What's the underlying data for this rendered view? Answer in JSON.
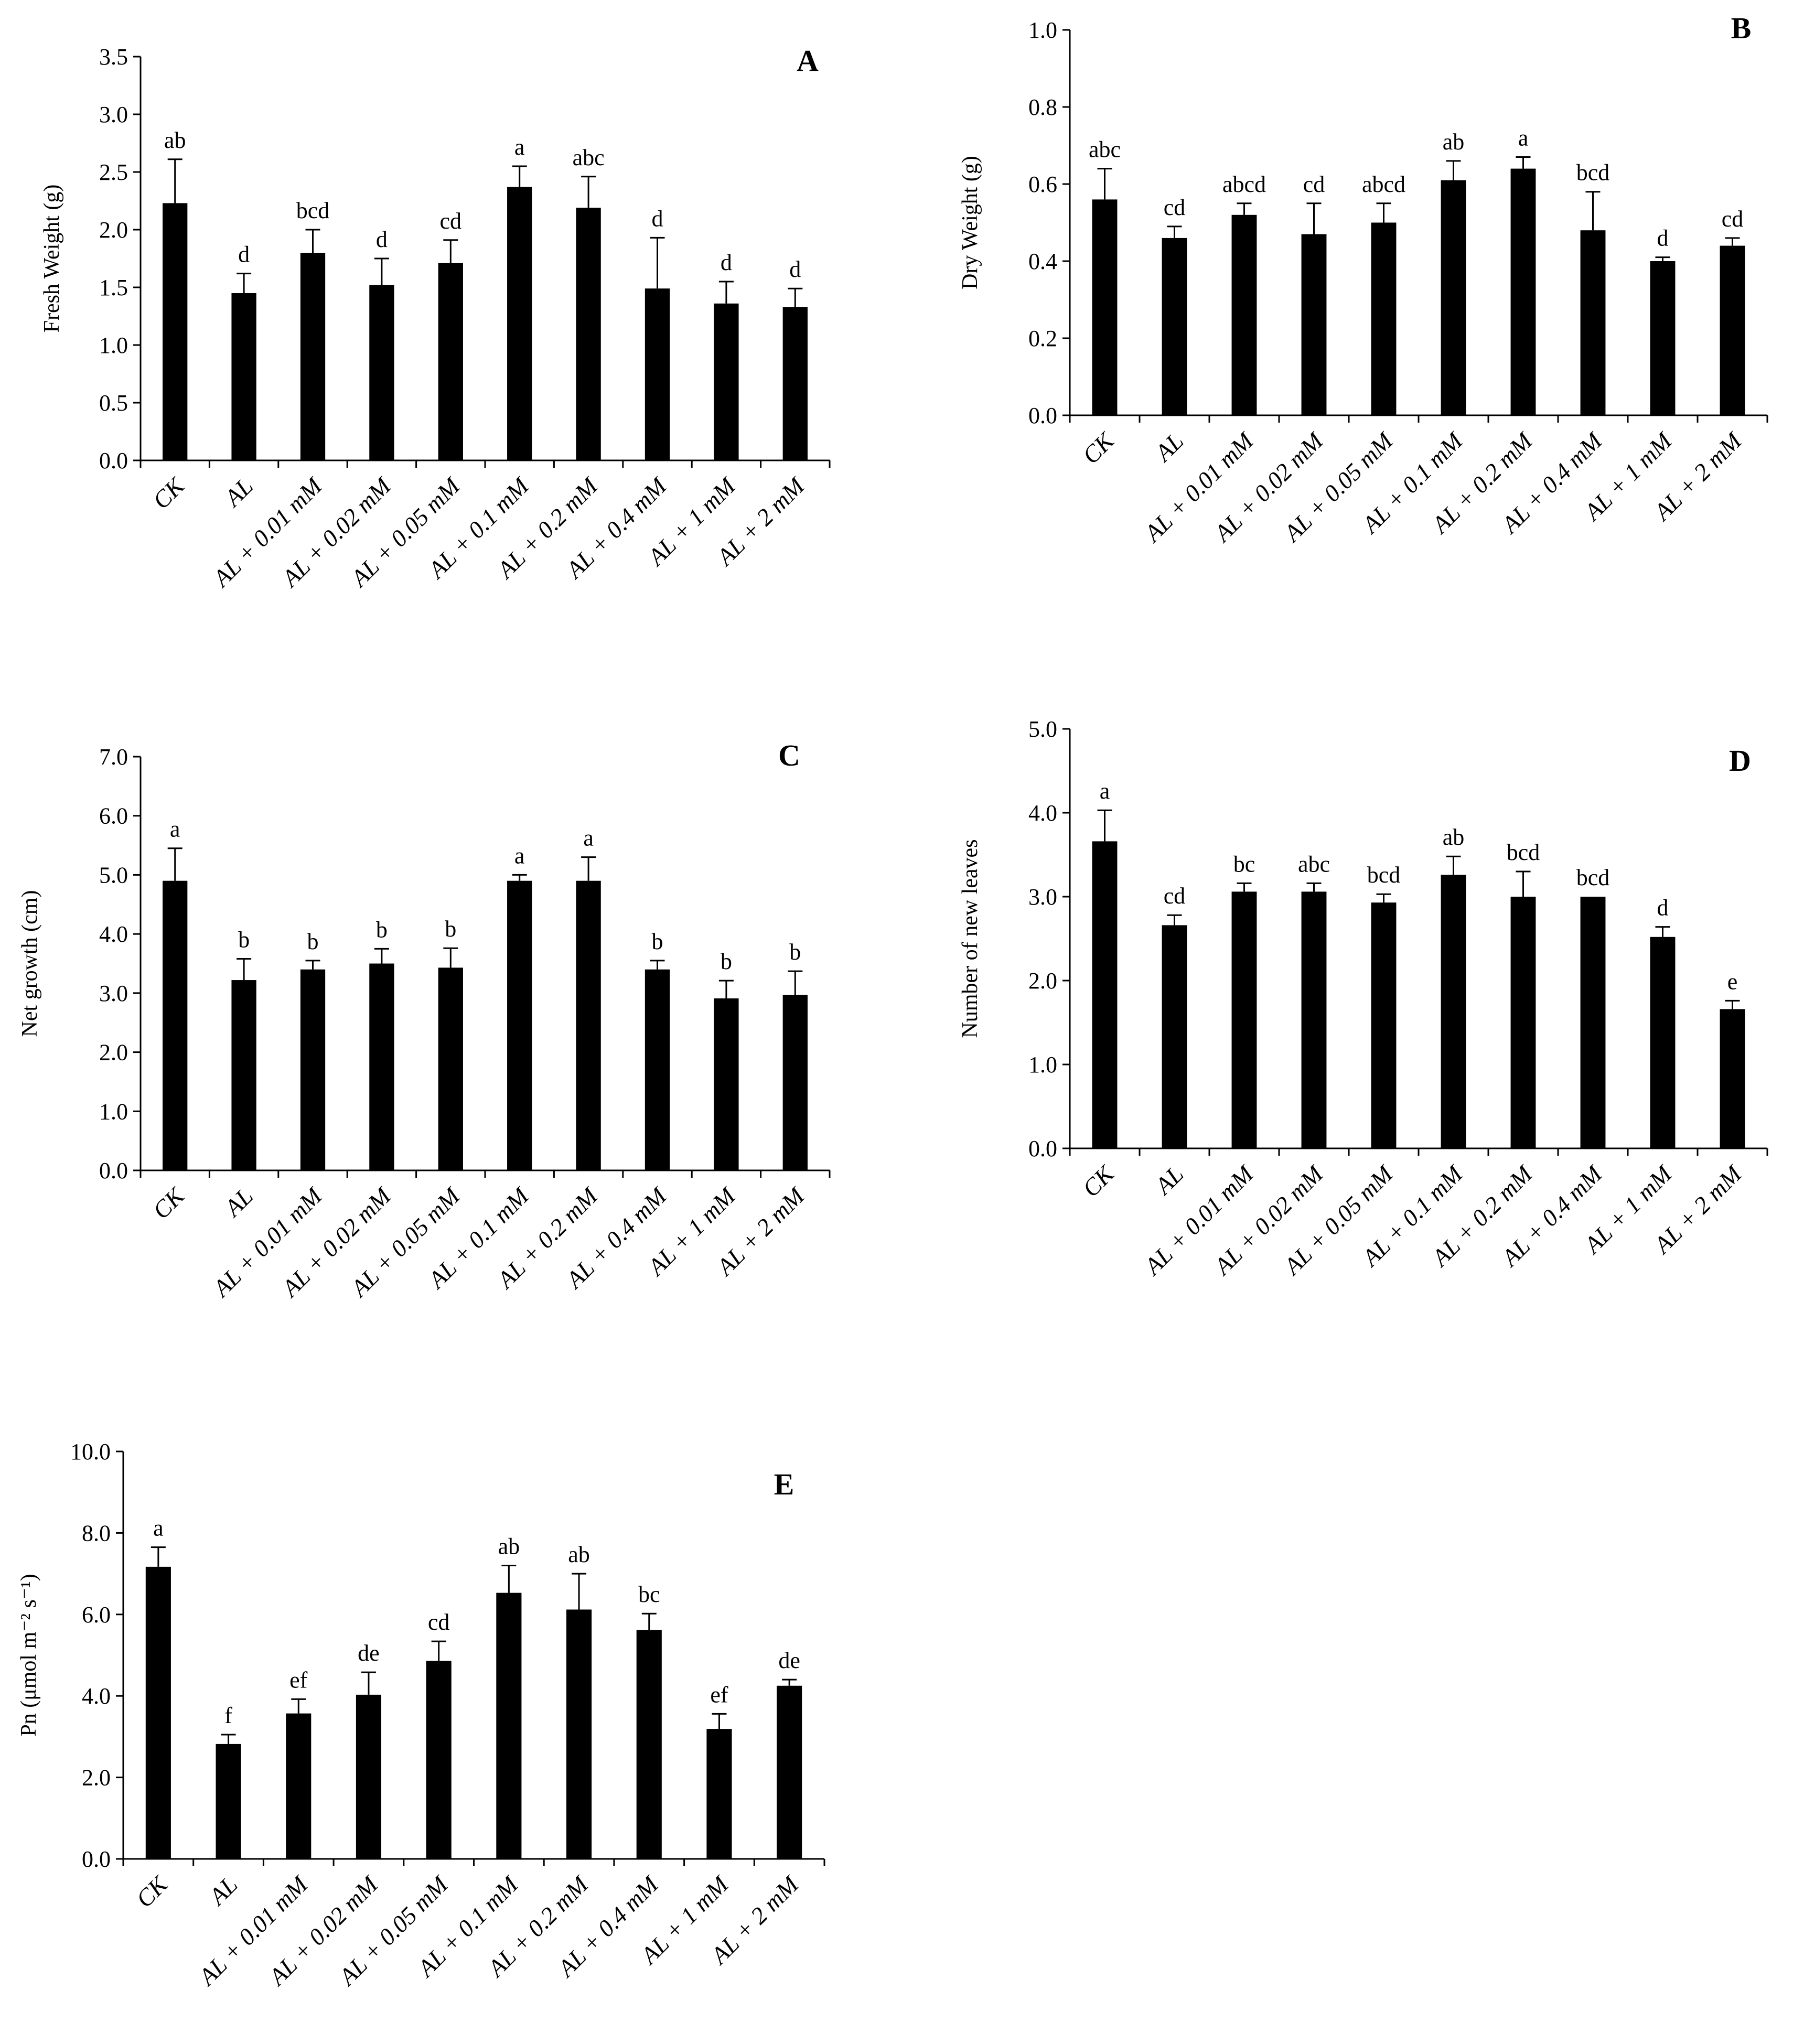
{
  "chart_data": [
    {
      "type": "bar",
      "panel": "A",
      "categories": [
        "CK",
        "AL",
        "AL + 0.01 mM",
        "AL + 0.02 mM",
        "AL + 0.05 mM",
        "AL + 0.1 mM",
        "AL + 0.2 mM",
        "AL + 0.4 mM",
        "AL + 1 mM",
        "AL + 2 mM"
      ],
      "values": [
        2.23,
        1.45,
        1.8,
        1.52,
        1.71,
        2.37,
        2.19,
        1.49,
        1.36,
        1.33
      ],
      "errors": [
        0.38,
        0.17,
        0.2,
        0.23,
        0.2,
        0.18,
        0.27,
        0.44,
        0.19,
        0.16
      ],
      "significance": [
        "ab",
        "d",
        "bcd",
        "d",
        "cd",
        "a",
        "abc",
        "d",
        "d",
        "d"
      ],
      "ylabel": "Fresh Weight  (g)",
      "ylim": [
        0,
        3.5
      ],
      "yticks": [
        "0.0",
        "0.5",
        "1.0",
        "1.5",
        "2.0",
        "2.5",
        "3.0",
        "3.5"
      ],
      "grid": false,
      "bar_color": "#000000"
    },
    {
      "type": "bar",
      "panel": "B",
      "categories": [
        "CK",
        "AL",
        "AL + 0.01 mM",
        "AL + 0.02 mM",
        "AL + 0.05 mM",
        "AL + 0.1 mM",
        "AL + 0.2 mM",
        "AL + 0.4 mM",
        "AL + 1 mM",
        "AL + 2 mM"
      ],
      "values": [
        0.56,
        0.46,
        0.52,
        0.47,
        0.5,
        0.61,
        0.64,
        0.48,
        0.4,
        0.44
      ],
      "errors": [
        0.08,
        0.03,
        0.03,
        0.08,
        0.05,
        0.05,
        0.03,
        0.1,
        0.01,
        0.02
      ],
      "significance": [
        "abc",
        "cd",
        "abcd",
        "cd",
        "abcd",
        "ab",
        "a",
        "bcd",
        "d",
        "cd"
      ],
      "ylabel": "Dry Weight  (g)",
      "ylim": [
        0,
        1.0
      ],
      "yticks": [
        "0.0",
        "0.2",
        "0.4",
        "0.6",
        "0.8",
        "1.0"
      ],
      "grid": false,
      "bar_color": "#000000"
    },
    {
      "type": "bar",
      "panel": "C",
      "categories": [
        "CK",
        "AL",
        "AL + 0.01 mM",
        "AL + 0.02 mM",
        "AL + 0.05 mM",
        "AL + 0.1 mM",
        "AL + 0.2 mM",
        "AL + 0.4 mM",
        "AL + 1 mM",
        "AL + 2 mM"
      ],
      "values": [
        4.9,
        3.22,
        3.4,
        3.5,
        3.43,
        4.9,
        4.9,
        3.4,
        2.91,
        2.97
      ],
      "errors": [
        0.55,
        0.36,
        0.15,
        0.25,
        0.33,
        0.1,
        0.4,
        0.15,
        0.3,
        0.4
      ],
      "significance": [
        "a",
        "b",
        "b",
        "b",
        "b",
        "a",
        "a",
        "b",
        "b",
        "b"
      ],
      "ylabel": "Net growth (cm)",
      "ylim": [
        0,
        7.0
      ],
      "yticks": [
        "0.0",
        "1.0",
        "2.0",
        "3.0",
        "4.0",
        "5.0",
        "6.0",
        "7.0"
      ],
      "grid": false,
      "bar_color": "#000000"
    },
    {
      "type": "bar",
      "panel": "D",
      "categories": [
        "CK",
        "AL",
        "AL + 0.01 mM",
        "AL + 0.02 mM",
        "AL + 0.05 mM",
        "AL + 0.1 mM",
        "AL + 0.2 mM",
        "AL + 0.4 mM",
        "AL + 1 mM",
        "AL + 2 mM"
      ],
      "values": [
        3.66,
        2.66,
        3.06,
        3.06,
        2.93,
        3.26,
        3.0,
        3.0,
        2.52,
        1.66
      ],
      "errors": [
        0.37,
        0.12,
        0.1,
        0.1,
        0.1,
        0.22,
        0.3,
        0.0,
        0.12,
        0.1
      ],
      "significance": [
        "a",
        "cd",
        "bc",
        "abc",
        "bcd",
        "ab",
        "bcd",
        "bcd",
        "d",
        "e"
      ],
      "ylabel": "Number of new leaves",
      "ylim": [
        0,
        5.0
      ],
      "yticks": [
        "0.0",
        "1.0",
        "2.0",
        "3.0",
        "4.0",
        "5.0"
      ],
      "grid": false,
      "bar_color": "#000000"
    },
    {
      "type": "bar",
      "panel": "E",
      "categories": [
        "CK",
        "AL",
        "AL + 0.01 mM",
        "AL + 0.02 mM",
        "AL + 0.05 mM",
        "AL + 0.1 mM",
        "AL + 0.2 mM",
        "AL + 0.4 mM",
        "AL + 1 mM",
        "AL + 2 mM"
      ],
      "values": [
        7.17,
        2.82,
        3.57,
        4.03,
        4.86,
        6.53,
        6.12,
        5.62,
        3.19,
        4.25
      ],
      "errors": [
        0.48,
        0.23,
        0.35,
        0.55,
        0.48,
        0.67,
        0.88,
        0.4,
        0.37,
        0.15
      ],
      "significance": [
        "a",
        "f",
        "ef",
        "de",
        "cd",
        "ab",
        "ab",
        "bc",
        "ef",
        "de"
      ],
      "ylabel": "Pn  (μmol m⁻² s⁻¹)",
      "ylim": [
        0,
        10.0
      ],
      "yticks": [
        "0.0",
        "2.0",
        "4.0",
        "6.0",
        "8.0",
        "10.0"
      ],
      "grid": false,
      "bar_color": "#000000"
    }
  ]
}
